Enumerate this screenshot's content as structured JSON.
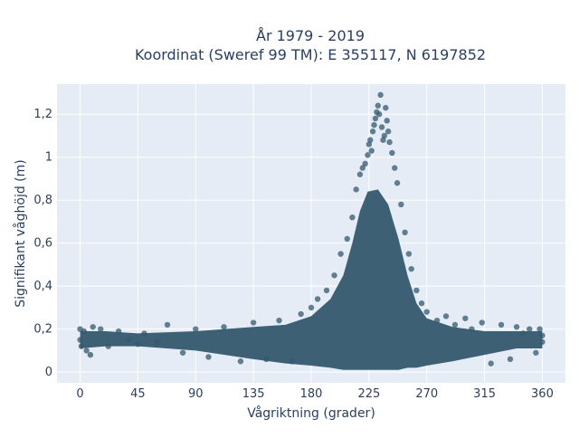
{
  "chart_data": {
    "type": "scatter",
    "title_line1": "År 1979 - 2019",
    "title_line2": "Koordinat (Sweref 99 TM): E 355117, N 6197852",
    "xlabel": "Vågriktning (grader)",
    "ylabel": "Signifikant våghöjd (m)",
    "xlim": [
      -18,
      378
    ],
    "ylim": [
      -0.05,
      1.34
    ],
    "xticks": [
      0,
      45,
      90,
      135,
      180,
      225,
      270,
      315,
      360
    ],
    "xtick_labels": [
      "0",
      "45",
      "90",
      "135",
      "180",
      "225",
      "270",
      "315",
      "360"
    ],
    "yticks": [
      0,
      0.2,
      0.4,
      0.6,
      0.8,
      1.0,
      1.2
    ],
    "ytick_labels": [
      "0",
      "0,2",
      "0,4",
      "0,6",
      "0,8",
      "1",
      "1,2"
    ],
    "grid": true,
    "legend": false,
    "marker_color": "#34586e",
    "plot_background": "#e5ecf6",
    "points": [
      {
        "x": 0,
        "y": 0.2
      },
      {
        "x": 0,
        "y": 0.15
      },
      {
        "x": 1,
        "y": 0.12
      },
      {
        "x": 3,
        "y": 0.19
      },
      {
        "x": 5,
        "y": 0.1
      },
      {
        "x": 8,
        "y": 0.08
      },
      {
        "x": 10,
        "y": 0.21
      },
      {
        "x": 16,
        "y": 0.2
      },
      {
        "x": 22,
        "y": 0.12
      },
      {
        "x": 30,
        "y": 0.19
      },
      {
        "x": 38,
        "y": 0.15
      },
      {
        "x": 45,
        "y": 0.13
      },
      {
        "x": 50,
        "y": 0.18
      },
      {
        "x": 60,
        "y": 0.14
      },
      {
        "x": 68,
        "y": 0.22
      },
      {
        "x": 80,
        "y": 0.09
      },
      {
        "x": 90,
        "y": 0.2
      },
      {
        "x": 100,
        "y": 0.07
      },
      {
        "x": 112,
        "y": 0.21
      },
      {
        "x": 125,
        "y": 0.05
      },
      {
        "x": 135,
        "y": 0.23
      },
      {
        "x": 145,
        "y": 0.06
      },
      {
        "x": 155,
        "y": 0.24
      },
      {
        "x": 165,
        "y": 0.05
      },
      {
        "x": 172,
        "y": 0.27
      },
      {
        "x": 180,
        "y": 0.3
      },
      {
        "x": 185,
        "y": 0.34
      },
      {
        "x": 192,
        "y": 0.38
      },
      {
        "x": 198,
        "y": 0.45
      },
      {
        "x": 203,
        "y": 0.55
      },
      {
        "x": 208,
        "y": 0.62
      },
      {
        "x": 212,
        "y": 0.72
      },
      {
        "x": 215,
        "y": 0.85
      },
      {
        "x": 218,
        "y": 0.92
      },
      {
        "x": 220,
        "y": 0.95
      },
      {
        "x": 222,
        "y": 0.97
      },
      {
        "x": 224,
        "y": 1.01
      },
      {
        "x": 225,
        "y": 1.06
      },
      {
        "x": 226,
        "y": 1.08
      },
      {
        "x": 227,
        "y": 1.03
      },
      {
        "x": 228,
        "y": 1.12
      },
      {
        "x": 229,
        "y": 1.15
      },
      {
        "x": 230,
        "y": 1.18
      },
      {
        "x": 231,
        "y": 1.21
      },
      {
        "x": 232,
        "y": 1.24
      },
      {
        "x": 233,
        "y": 1.2
      },
      {
        "x": 234,
        "y": 1.29
      },
      {
        "x": 235,
        "y": 1.14
      },
      {
        "x": 236,
        "y": 1.08
      },
      {
        "x": 237,
        "y": 1.1
      },
      {
        "x": 238,
        "y": 1.23
      },
      {
        "x": 239,
        "y": 1.17
      },
      {
        "x": 240,
        "y": 1.12
      },
      {
        "x": 241,
        "y": 1.07
      },
      {
        "x": 243,
        "y": 1.02
      },
      {
        "x": 245,
        "y": 0.95
      },
      {
        "x": 247,
        "y": 0.88
      },
      {
        "x": 250,
        "y": 0.78
      },
      {
        "x": 253,
        "y": 0.65
      },
      {
        "x": 256,
        "y": 0.55
      },
      {
        "x": 258,
        "y": 0.48
      },
      {
        "x": 262,
        "y": 0.38
      },
      {
        "x": 266,
        "y": 0.32
      },
      {
        "x": 270,
        "y": 0.28
      },
      {
        "x": 278,
        "y": 0.24
      },
      {
        "x": 285,
        "y": 0.26
      },
      {
        "x": 292,
        "y": 0.22
      },
      {
        "x": 300,
        "y": 0.25
      },
      {
        "x": 305,
        "y": 0.2
      },
      {
        "x": 313,
        "y": 0.23
      },
      {
        "x": 320,
        "y": 0.04
      },
      {
        "x": 328,
        "y": 0.22
      },
      {
        "x": 335,
        "y": 0.06
      },
      {
        "x": 340,
        "y": 0.21
      },
      {
        "x": 345,
        "y": 0.18
      },
      {
        "x": 350,
        "y": 0.2
      },
      {
        "x": 355,
        "y": 0.09
      },
      {
        "x": 358,
        "y": 0.2
      },
      {
        "x": 360,
        "y": 0.17
      },
      {
        "x": 360,
        "y": 0.14
      }
    ],
    "density_band": [
      {
        "x": 0,
        "low": 0.11,
        "high": 0.19
      },
      {
        "x": 20,
        "low": 0.12,
        "high": 0.19
      },
      {
        "x": 45,
        "low": 0.12,
        "high": 0.18
      },
      {
        "x": 90,
        "low": 0.1,
        "high": 0.19
      },
      {
        "x": 135,
        "low": 0.06,
        "high": 0.21
      },
      {
        "x": 160,
        "low": 0.04,
        "high": 0.22
      },
      {
        "x": 180,
        "low": 0.03,
        "high": 0.26
      },
      {
        "x": 195,
        "low": 0.02,
        "high": 0.34
      },
      {
        "x": 205,
        "low": 0.01,
        "high": 0.45
      },
      {
        "x": 212,
        "low": 0.01,
        "high": 0.6
      },
      {
        "x": 218,
        "low": 0.01,
        "high": 0.75
      },
      {
        "x": 224,
        "low": 0.01,
        "high": 0.84
      },
      {
        "x": 232,
        "low": 0.01,
        "high": 0.85
      },
      {
        "x": 240,
        "low": 0.01,
        "high": 0.78
      },
      {
        "x": 248,
        "low": 0.01,
        "high": 0.62
      },
      {
        "x": 255,
        "low": 0.02,
        "high": 0.45
      },
      {
        "x": 262,
        "low": 0.02,
        "high": 0.32
      },
      {
        "x": 270,
        "low": 0.03,
        "high": 0.25
      },
      {
        "x": 290,
        "low": 0.05,
        "high": 0.21
      },
      {
        "x": 315,
        "low": 0.08,
        "high": 0.19
      },
      {
        "x": 340,
        "low": 0.11,
        "high": 0.19
      },
      {
        "x": 360,
        "low": 0.11,
        "high": 0.19
      }
    ]
  }
}
